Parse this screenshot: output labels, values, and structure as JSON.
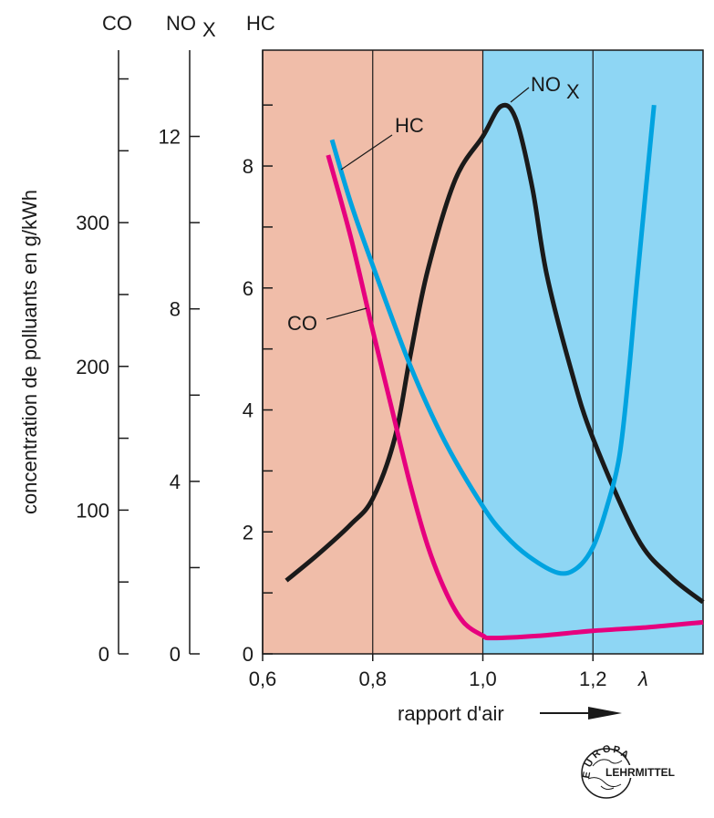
{
  "chart_data": {
    "type": "line",
    "title": "",
    "xlabel": "rapport d'air",
    "x_symbol": "λ",
    "ylabel": "concentration de polluants en g/kWh",
    "xlim": [
      0.6,
      1.4
    ],
    "x_ticks": [
      "0,6",
      "0,8",
      "1,0",
      "1,2"
    ],
    "x_tick_values": [
      0.6,
      0.8,
      1.0,
      1.2
    ],
    "vertical_lines": [
      0.8,
      1.0,
      1.2
    ],
    "regions": [
      {
        "from": 0.6,
        "to": 1.0,
        "color": "#f0bda9"
      },
      {
        "from": 1.0,
        "to": 1.4,
        "color": "#8ed6f4"
      }
    ],
    "axes": [
      {
        "name": "CO",
        "ylim": [
          0,
          420
        ],
        "ticks": [
          "0",
          "100",
          "200",
          "300"
        ],
        "tick_values": [
          0,
          100,
          200,
          300
        ],
        "minor_step": 50
      },
      {
        "name": "NO",
        "sub": "X",
        "ylim": [
          0,
          14
        ],
        "ticks": [
          "0",
          "4",
          "8",
          "12"
        ],
        "tick_values": [
          0,
          4,
          8,
          12
        ],
        "minor_step": 2
      },
      {
        "name": "HC",
        "ylim": [
          0,
          9.9
        ],
        "ticks": [
          "0",
          "2",
          "4",
          "6",
          "8"
        ],
        "tick_values": [
          0,
          2,
          4,
          6,
          8
        ],
        "minor_step": 1
      }
    ],
    "series": [
      {
        "name": "CO",
        "axis": 0,
        "color": "#e6007e",
        "label": "CO",
        "x": [
          0.719,
          0.76,
          0.8,
          0.835,
          0.868,
          0.9,
          0.934,
          0.965,
          1.0,
          1.017,
          1.1,
          1.2,
          1.3,
          1.4
        ],
        "y": [
          347,
          290,
          225,
          170,
          118,
          75,
          42,
          22,
          12.7,
          11,
          12.5,
          16,
          18.5,
          22
        ]
      },
      {
        "name": "NOx",
        "axis": 1,
        "color": "#1a1a1a",
        "label": "NO",
        "label_sub": "X",
        "x": [
          0.643,
          0.7,
          0.76,
          0.8,
          0.84,
          0.868,
          0.9,
          0.95,
          1.0,
          1.033,
          1.06,
          1.09,
          1.116,
          1.16,
          1.2,
          1.28,
          1.34,
          1.4
        ],
        "y": [
          1.7,
          2.3,
          3.0,
          3.6,
          5.0,
          6.9,
          8.9,
          11.0,
          12.0,
          12.7,
          12.4,
          10.8,
          8.8,
          6.6,
          5.0,
          2.7,
          1.8,
          1.2
        ]
      },
      {
        "name": "HC",
        "axis": 2,
        "color": "#00a3e0",
        "label": "HC",
        "x": [
          0.726,
          0.76,
          0.8,
          0.868,
          0.93,
          1.0,
          1.04,
          1.083,
          1.136,
          1.17,
          1.2,
          1.225,
          1.248,
          1.265,
          1.281,
          1.311
        ],
        "y": [
          8.43,
          7.4,
          6.37,
          4.73,
          3.5,
          2.42,
          1.95,
          1.6,
          1.33,
          1.4,
          1.75,
          2.4,
          3.24,
          4.6,
          6.2,
          9.0
        ]
      }
    ]
  },
  "logo": {
    "top": "EUROPA",
    "right": "LEHRMITTEL"
  }
}
